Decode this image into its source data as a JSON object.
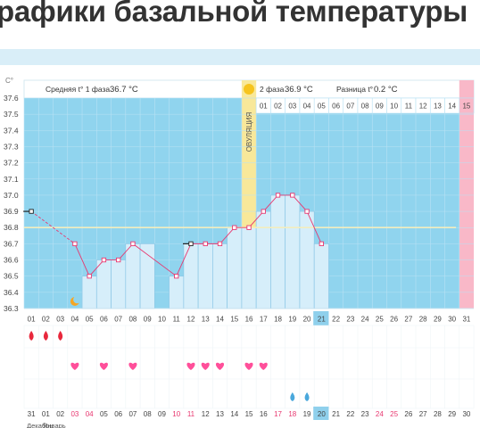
{
  "header": {
    "title": "рафики базальной температуры"
  },
  "chart_data": {
    "type": "line",
    "ylabel": "C°",
    "ylim": [
      36.3,
      37.6
    ],
    "yticks": [
      "37.6",
      "37.5",
      "37.4",
      "37.3",
      "37.2",
      "37.1",
      "37.0",
      "36.9",
      "36.8",
      "36.7",
      "36.6",
      "36.5",
      "36.4",
      "36.3"
    ],
    "cycle_days": [
      "01",
      "02",
      "03",
      "04",
      "05",
      "06",
      "07",
      "08",
      "09",
      "10",
      "11",
      "12",
      "13",
      "14",
      "15",
      "16",
      "17",
      "18",
      "19",
      "20",
      "21",
      "22",
      "23",
      "24",
      "25",
      "26",
      "27",
      "28",
      "29",
      "30",
      "31"
    ],
    "calendar_days": [
      "31",
      "01",
      "02",
      "03",
      "04",
      "05",
      "06",
      "07",
      "08",
      "09",
      "10",
      "11",
      "12",
      "13",
      "14",
      "15",
      "16",
      "17",
      "18",
      "19",
      "20",
      "21",
      "22",
      "23",
      "24",
      "25",
      "26",
      "27",
      "28",
      "29",
      "30"
    ],
    "weekend_calendar_days": [
      "03",
      "04",
      "10",
      "11",
      "17",
      "18",
      "24",
      "25"
    ],
    "current_day": {
      "cycle": "21",
      "calendar": "20"
    },
    "month_label": "Декабрь",
    "month_label_overlap": "Январь",
    "temperature_series": {
      "days": [
        1,
        4,
        5,
        6,
        7,
        8,
        11,
        12,
        13,
        14,
        15,
        16,
        17,
        18,
        19,
        20,
        21
      ],
      "values": [
        36.9,
        36.7,
        36.5,
        36.6,
        36.6,
        36.7,
        36.5,
        36.7,
        36.7,
        36.7,
        36.8,
        36.8,
        36.9,
        37.0,
        37.0,
        36.9,
        36.7
      ],
      "connect_dashed": [
        [
          1,
          4
        ]
      ]
    },
    "bar_days": [
      5,
      6,
      7,
      8,
      9,
      11,
      12,
      13,
      14,
      15,
      16,
      17,
      18,
      19,
      20,
      21
    ],
    "coverline": 36.8,
    "ovulation_day": 16,
    "ovulation_label": "ОВУЛЯЦИЯ",
    "phase1_label": "Средняя t° 1 фаза",
    "phase1_avg": "36.7 °C",
    "phase2_label": "2 фаза",
    "phase2_avg": "36.9 °C",
    "diff_label": "Разница t°",
    "diff_value": "0.2 °C",
    "phase2_day_numbers": [
      "01",
      "02",
      "03",
      "04",
      "05",
      "06",
      "07",
      "08",
      "09",
      "10",
      "11",
      "12",
      "13",
      "14",
      "15"
    ],
    "menstruation_days": [
      1,
      2,
      3
    ],
    "heart_days": [
      4,
      6,
      8,
      12,
      13,
      14,
      16,
      17
    ],
    "drop_days": [
      19,
      20
    ],
    "moon_day": 4,
    "colors": {
      "phase1_bg": "#90d4ee",
      "phase2_bg": "#d6eefa",
      "ovulation": "#f8e89a",
      "pink_column": "#f9b8c8",
      "line": "#e83870",
      "heart": "#ff4f9a",
      "blood": "#e8283c",
      "drop": "#4aa8dc"
    }
  }
}
